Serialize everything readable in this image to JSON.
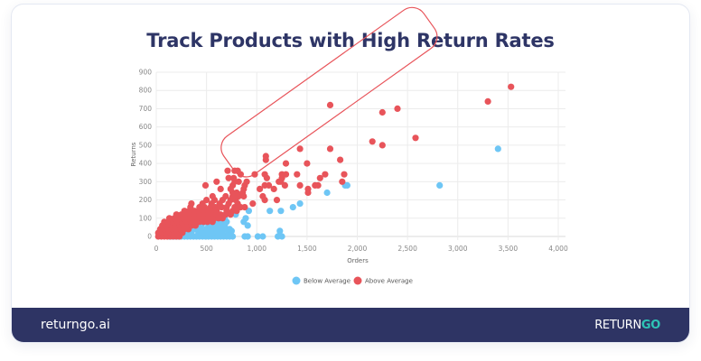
{
  "card": {
    "title": "Track Products with High Return Rates"
  },
  "footer": {
    "site": "returngo.ai",
    "logo_part1": "RETURN",
    "logo_part2": "GO"
  },
  "colors": {
    "below_average": "#6ec6f5",
    "above_average": "#e8545a",
    "title": "#2e3566",
    "footer_bg": "#2e3464",
    "logo_accent": "#2ec4b6",
    "annotation": "#e8545a"
  },
  "chart_data": {
    "type": "scatter",
    "title": "Track Products with High Return Rates",
    "xlabel": "Orders",
    "ylabel": "Returns",
    "xlim": [
      0,
      4000
    ],
    "ylim": [
      0,
      900
    ],
    "x_ticks": [
      "0",
      "500",
      "1,000",
      "1,500",
      "2,000",
      "2,500",
      "3,000",
      "3,500",
      "4,000"
    ],
    "y_ticks": [
      "0",
      "100",
      "200",
      "300",
      "400",
      "500",
      "600",
      "700",
      "800",
      "900"
    ],
    "grid": true,
    "legend_position": "bottom",
    "legend": [
      "Below Average",
      "Above Average"
    ],
    "annotation": "rounded rectangle highlighting high-return diagonal band (from ~0 orders/0 returns to ~1,700 orders/~750 returns)",
    "series": [
      {
        "name": "Below Average",
        "color": "#6ec6f5",
        "points": [
          [
            130,
            0
          ],
          [
            160,
            0
          ],
          [
            190,
            0
          ],
          [
            220,
            0
          ],
          [
            250,
            0
          ],
          [
            280,
            0
          ],
          [
            310,
            0
          ],
          [
            340,
            0
          ],
          [
            370,
            0
          ],
          [
            400,
            0
          ],
          [
            430,
            0
          ],
          [
            460,
            0
          ],
          [
            490,
            0
          ],
          [
            520,
            0
          ],
          [
            550,
            0
          ],
          [
            580,
            0
          ],
          [
            610,
            0
          ],
          [
            640,
            0
          ],
          [
            670,
            0
          ],
          [
            700,
            0
          ],
          [
            730,
            0
          ],
          [
            760,
            0
          ],
          [
            880,
            0
          ],
          [
            910,
            0
          ],
          [
            1010,
            0
          ],
          [
            1060,
            0
          ],
          [
            1210,
            0
          ],
          [
            1250,
            0
          ],
          [
            1230,
            30
          ],
          [
            200,
            20
          ],
          [
            260,
            20
          ],
          [
            300,
            20
          ],
          [
            350,
            20
          ],
          [
            420,
            20
          ],
          [
            470,
            20
          ],
          [
            520,
            20
          ],
          [
            560,
            20
          ],
          [
            620,
            20
          ],
          [
            660,
            20
          ],
          [
            720,
            20
          ],
          [
            750,
            30
          ],
          [
            220,
            40
          ],
          [
            280,
            40
          ],
          [
            330,
            40
          ],
          [
            380,
            40
          ],
          [
            440,
            40
          ],
          [
            500,
            40
          ],
          [
            550,
            40
          ],
          [
            600,
            40
          ],
          [
            650,
            40
          ],
          [
            700,
            40
          ],
          [
            730,
            40
          ],
          [
            400,
            60
          ],
          [
            450,
            60
          ],
          [
            520,
            60
          ],
          [
            560,
            60
          ],
          [
            620,
            60
          ],
          [
            680,
            60
          ],
          [
            910,
            60
          ],
          [
            480,
            80
          ],
          [
            600,
            80
          ],
          [
            650,
            80
          ],
          [
            700,
            80
          ],
          [
            870,
            80
          ],
          [
            890,
            100
          ],
          [
            680,
            100
          ],
          [
            640,
            90
          ],
          [
            790,
            120
          ],
          [
            920,
            140
          ],
          [
            1130,
            140
          ],
          [
            1240,
            140
          ],
          [
            1360,
            160
          ],
          [
            1430,
            180
          ],
          [
            1700,
            240
          ],
          [
            1880,
            280
          ],
          [
            1900,
            280
          ],
          [
            2820,
            280
          ],
          [
            3400,
            480
          ]
        ]
      },
      {
        "name": "Above Average",
        "color": "#e8545a",
        "points": [
          [
            20,
            0
          ],
          [
            50,
            0
          ],
          [
            80,
            0
          ],
          [
            110,
            0
          ],
          [
            140,
            0
          ],
          [
            170,
            0
          ],
          [
            200,
            0
          ],
          [
            230,
            0
          ],
          [
            20,
            20
          ],
          [
            60,
            20
          ],
          [
            100,
            20
          ],
          [
            140,
            20
          ],
          [
            180,
            20
          ],
          [
            220,
            20
          ],
          [
            260,
            20
          ],
          [
            40,
            40
          ],
          [
            80,
            40
          ],
          [
            120,
            40
          ],
          [
            160,
            40
          ],
          [
            200,
            40
          ],
          [
            240,
            40
          ],
          [
            280,
            40
          ],
          [
            320,
            40
          ],
          [
            60,
            60
          ],
          [
            100,
            60
          ],
          [
            150,
            60
          ],
          [
            190,
            60
          ],
          [
            230,
            60
          ],
          [
            270,
            60
          ],
          [
            310,
            60
          ],
          [
            350,
            60
          ],
          [
            390,
            60
          ],
          [
            80,
            80
          ],
          [
            120,
            80
          ],
          [
            170,
            80
          ],
          [
            210,
            80
          ],
          [
            260,
            80
          ],
          [
            300,
            80
          ],
          [
            340,
            80
          ],
          [
            380,
            80
          ],
          [
            430,
            80
          ],
          [
            470,
            80
          ],
          [
            510,
            80
          ],
          [
            560,
            80
          ],
          [
            130,
            100
          ],
          [
            180,
            100
          ],
          [
            220,
            100
          ],
          [
            270,
            100
          ],
          [
            310,
            100
          ],
          [
            360,
            100
          ],
          [
            400,
            100
          ],
          [
            450,
            100
          ],
          [
            500,
            100
          ],
          [
            540,
            100
          ],
          [
            580,
            100
          ],
          [
            620,
            100
          ],
          [
            660,
            100
          ],
          [
            200,
            120
          ],
          [
            250,
            120
          ],
          [
            290,
            120
          ],
          [
            340,
            120
          ],
          [
            380,
            120
          ],
          [
            430,
            120
          ],
          [
            470,
            120
          ],
          [
            520,
            120
          ],
          [
            560,
            120
          ],
          [
            600,
            120
          ],
          [
            640,
            120
          ],
          [
            690,
            120
          ],
          [
            740,
            120
          ],
          [
            280,
            140
          ],
          [
            330,
            140
          ],
          [
            380,
            140
          ],
          [
            420,
            140
          ],
          [
            470,
            140
          ],
          [
            520,
            140
          ],
          [
            560,
            140
          ],
          [
            600,
            140
          ],
          [
            700,
            140
          ],
          [
            760,
            140
          ],
          [
            800,
            140
          ],
          [
            340,
            160
          ],
          [
            430,
            160
          ],
          [
            480,
            160
          ],
          [
            540,
            160
          ],
          [
            590,
            160
          ],
          [
            650,
            160
          ],
          [
            700,
            160
          ],
          [
            780,
            160
          ],
          [
            840,
            160
          ],
          [
            880,
            160
          ],
          [
            350,
            180
          ],
          [
            460,
            180
          ],
          [
            550,
            180
          ],
          [
            630,
            180
          ],
          [
            720,
            180
          ],
          [
            810,
            180
          ],
          [
            960,
            180
          ],
          [
            500,
            200
          ],
          [
            580,
            200
          ],
          [
            660,
            200
          ],
          [
            740,
            200
          ],
          [
            790,
            200
          ],
          [
            1080,
            200
          ],
          [
            1200,
            200
          ],
          [
            560,
            220
          ],
          [
            690,
            220
          ],
          [
            760,
            220
          ],
          [
            820,
            220
          ],
          [
            870,
            220
          ],
          [
            1060,
            220
          ],
          [
            760,
            240
          ],
          [
            800,
            240
          ],
          [
            860,
            240
          ],
          [
            1510,
            240
          ],
          [
            640,
            260
          ],
          [
            740,
            260
          ],
          [
            870,
            260
          ],
          [
            1030,
            260
          ],
          [
            1170,
            260
          ],
          [
            1510,
            260
          ],
          [
            490,
            280
          ],
          [
            760,
            280
          ],
          [
            880,
            280
          ],
          [
            1080,
            280
          ],
          [
            1120,
            280
          ],
          [
            1280,
            280
          ],
          [
            1430,
            280
          ],
          [
            1580,
            280
          ],
          [
            1610,
            280
          ],
          [
            600,
            300
          ],
          [
            780,
            300
          ],
          [
            820,
            300
          ],
          [
            900,
            300
          ],
          [
            1220,
            300
          ],
          [
            1240,
            300
          ],
          [
            1850,
            300
          ],
          [
            720,
            320
          ],
          [
            770,
            320
          ],
          [
            1100,
            320
          ],
          [
            1250,
            320
          ],
          [
            1630,
            320
          ],
          [
            1680,
            340
          ],
          [
            840,
            340
          ],
          [
            980,
            340
          ],
          [
            1080,
            340
          ],
          [
            1290,
            340
          ],
          [
            1400,
            340
          ],
          [
            1870,
            340
          ],
          [
            710,
            360
          ],
          [
            780,
            360
          ],
          [
            810,
            360
          ],
          [
            1250,
            340
          ],
          [
            1290,
            400
          ],
          [
            1500,
            400
          ],
          [
            1830,
            420
          ],
          [
            1090,
            420
          ],
          [
            1090,
            440
          ],
          [
            1430,
            480
          ],
          [
            1730,
            480
          ],
          [
            2150,
            520
          ],
          [
            2250,
            500
          ],
          [
            2580,
            540
          ],
          [
            1730,
            720
          ],
          [
            2250,
            680
          ],
          [
            2400,
            700
          ],
          [
            3300,
            740
          ],
          [
            3530,
            820
          ]
        ]
      }
    ]
  }
}
